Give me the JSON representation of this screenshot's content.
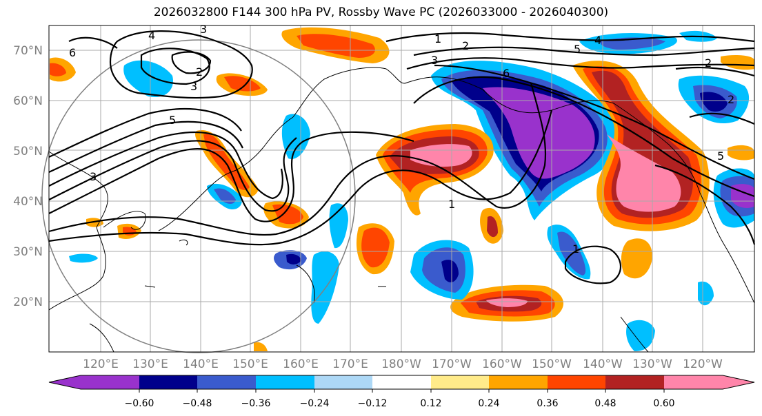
{
  "title": "2026032800 F144 300 hPa PV, Rossby Wave PC (2026033000 - 2026040300)",
  "map": {
    "lat_labels": [
      "70°N",
      "60°N",
      "50°N",
      "40°N",
      "30°N",
      "20°N"
    ],
    "lon_labels": [
      "120°E",
      "130°E",
      "140°E",
      "150°E",
      "160°E",
      "170°E",
      "180°W",
      "170°W",
      "160°W",
      "150°W",
      "140°W",
      "130°W",
      "120°W"
    ],
    "contour_labels": [
      "6",
      "4",
      "3",
      "2",
      "3",
      "5",
      "3",
      "2",
      "1",
      "3",
      "2",
      "5",
      "4",
      "6",
      "5",
      "1",
      "1",
      "2"
    ]
  },
  "colorbar": {
    "tick_labels": [
      "−0.60",
      "−0.48",
      "−0.36",
      "−0.24",
      "−0.12",
      "0.12",
      "0.24",
      "0.36",
      "0.48",
      "0.60"
    ],
    "colors": [
      "#9932CC",
      "#00008B",
      "#3A5BCD",
      "#00BFFF",
      "#ADD8F6",
      "#FFFFFF",
      "#FFEB8A",
      "#FFA500",
      "#FF4500",
      "#B22222",
      "#FF85AA"
    ]
  }
}
